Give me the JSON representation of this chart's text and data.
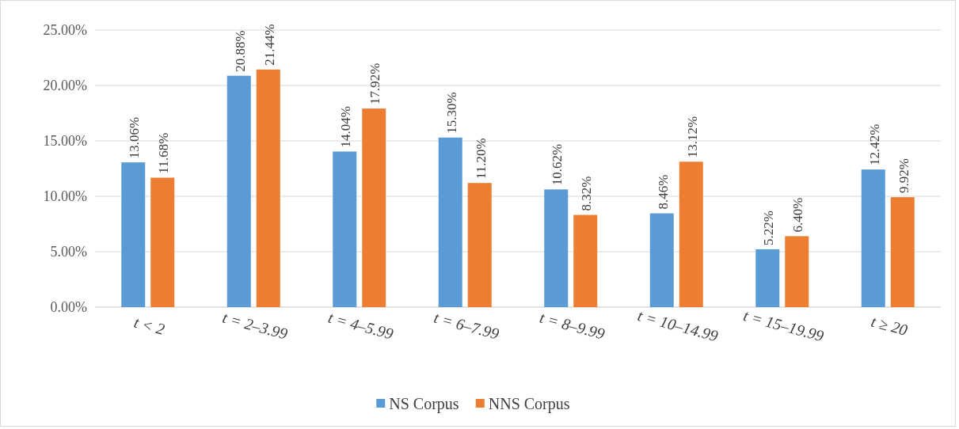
{
  "chart_data": {
    "type": "bar",
    "categories": [
      "t < 2",
      "t = 2–3.99",
      "t = 4–5.99",
      "t = 6–7.99",
      "t = 8–9.99",
      "t = 10–14.99",
      "t = 15–19.99",
      "t ≥ 20"
    ],
    "series": [
      {
        "name": "NS Corpus",
        "color": "#5b9bd5",
        "values": [
          13.06,
          20.88,
          14.04,
          15.3,
          10.62,
          8.46,
          5.22,
          12.42
        ],
        "value_labels": [
          "13.06%",
          "20.88%",
          "14.04%",
          "15.30%",
          "10.62%",
          "8.46%",
          "5.22%",
          "12.42%"
        ]
      },
      {
        "name": "NNS Corpus",
        "color": "#ed7d31",
        "values": [
          11.68,
          21.44,
          17.92,
          11.2,
          8.32,
          13.12,
          6.4,
          9.92
        ],
        "value_labels": [
          "11.68%",
          "21.44%",
          "17.92%",
          "11.20%",
          "8.32%",
          "13.12%",
          "6.40%",
          "9.92%"
        ]
      }
    ],
    "ylim": [
      0,
      25
    ],
    "yticks": [
      {
        "value": 0,
        "label": "0.00%"
      },
      {
        "value": 5,
        "label": "5.00%"
      },
      {
        "value": 10,
        "label": "10.00%"
      },
      {
        "value": 15,
        "label": "15.00%"
      },
      {
        "value": 20,
        "label": "20.00%"
      },
      {
        "value": 25,
        "label": "25.00%"
      }
    ],
    "grid": "y",
    "legend": "bottom"
  }
}
